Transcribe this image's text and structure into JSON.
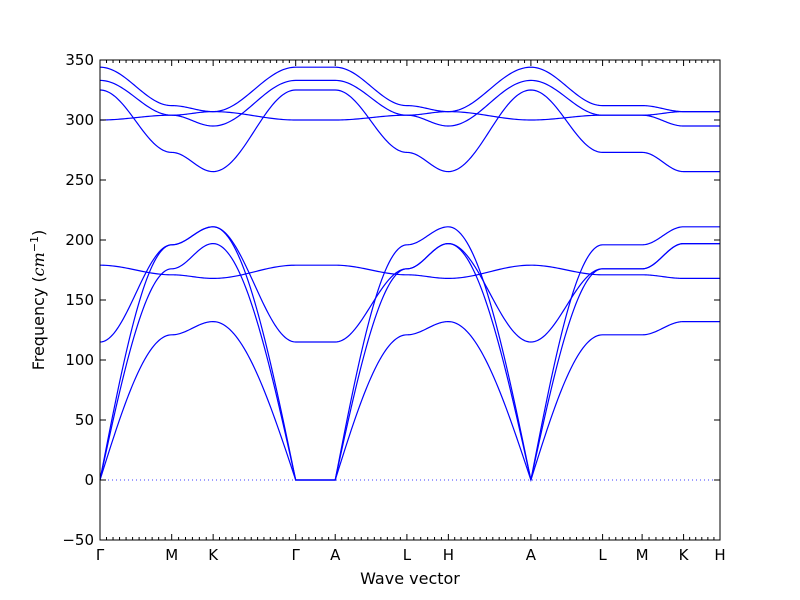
{
  "chart_data": {
    "type": "line",
    "title": "",
    "xlabel": "Wave vector",
    "ylabel_prefix": "Frequency (",
    "ylabel_unit": "cm",
    "ylabel_exp": "−1",
    "ylabel_suffix": ")",
    "ylim": [
      -50,
      350
    ],
    "yticks": [
      "−50",
      "0",
      "50",
      "100",
      "150",
      "200",
      "250",
      "300",
      "350"
    ],
    "ytick_values": [
      -50,
      0,
      50,
      100,
      150,
      200,
      250,
      300,
      350
    ],
    "xlim": [
      0,
      16
    ],
    "special_points": [
      {
        "label": "Γ",
        "x": 0
      },
      {
        "label": "M",
        "x": 1.85
      },
      {
        "label": "K",
        "x": 2.92
      },
      {
        "label": "Γ",
        "x": 5.05
      },
      {
        "label": "A",
        "x": 6.07
      },
      {
        "label": "L",
        "x": 7.92
      },
      {
        "label": "H",
        "x": 8.99
      },
      {
        "label": "A",
        "x": 11.12
      },
      {
        "label": "L",
        "x": 12.97
      },
      {
        "label": "M",
        "x": 13.99
      },
      {
        "label": "K",
        "x": 15.06
      },
      {
        "label": "H",
        "x": 16.0
      }
    ],
    "grid": false,
    "series": [
      {
        "values_at_special_points": [
          0,
          121,
          132,
          0,
          0,
          121,
          132,
          0,
          121,
          121,
          132,
          132
        ]
      },
      {
        "values_at_special_points": [
          0,
          176,
          197,
          0,
          0,
          176,
          197,
          0,
          176,
          176,
          197,
          197
        ]
      },
      {
        "values_at_special_points": [
          0,
          196,
          211,
          0,
          0,
          196,
          211,
          0,
          196,
          196,
          211,
          211
        ]
      },
      {
        "values_at_special_points": [
          115,
          196,
          211,
          115,
          115,
          176,
          197,
          115,
          176,
          176,
          197,
          197
        ]
      },
      {
        "values_at_special_points": [
          179,
          171,
          168,
          179,
          179,
          171,
          168,
          179,
          171,
          171,
          168,
          168
        ]
      },
      {
        "values_at_special_points": [
          325,
          273,
          257,
          325,
          325,
          273,
          257,
          325,
          273,
          273,
          257,
          257
        ]
      },
      {
        "values_at_special_points": [
          300,
          304,
          307,
          300,
          300,
          304,
          307,
          300,
          304,
          304,
          307,
          307
        ]
      },
      {
        "values_at_special_points": [
          333,
          304,
          295,
          333,
          333,
          304,
          295,
          333,
          304,
          304,
          295,
          295
        ]
      },
      {
        "values_at_special_points": [
          344,
          312,
          307,
          344,
          344,
          312,
          307,
          344,
          312,
          312,
          307,
          307
        ]
      }
    ]
  }
}
